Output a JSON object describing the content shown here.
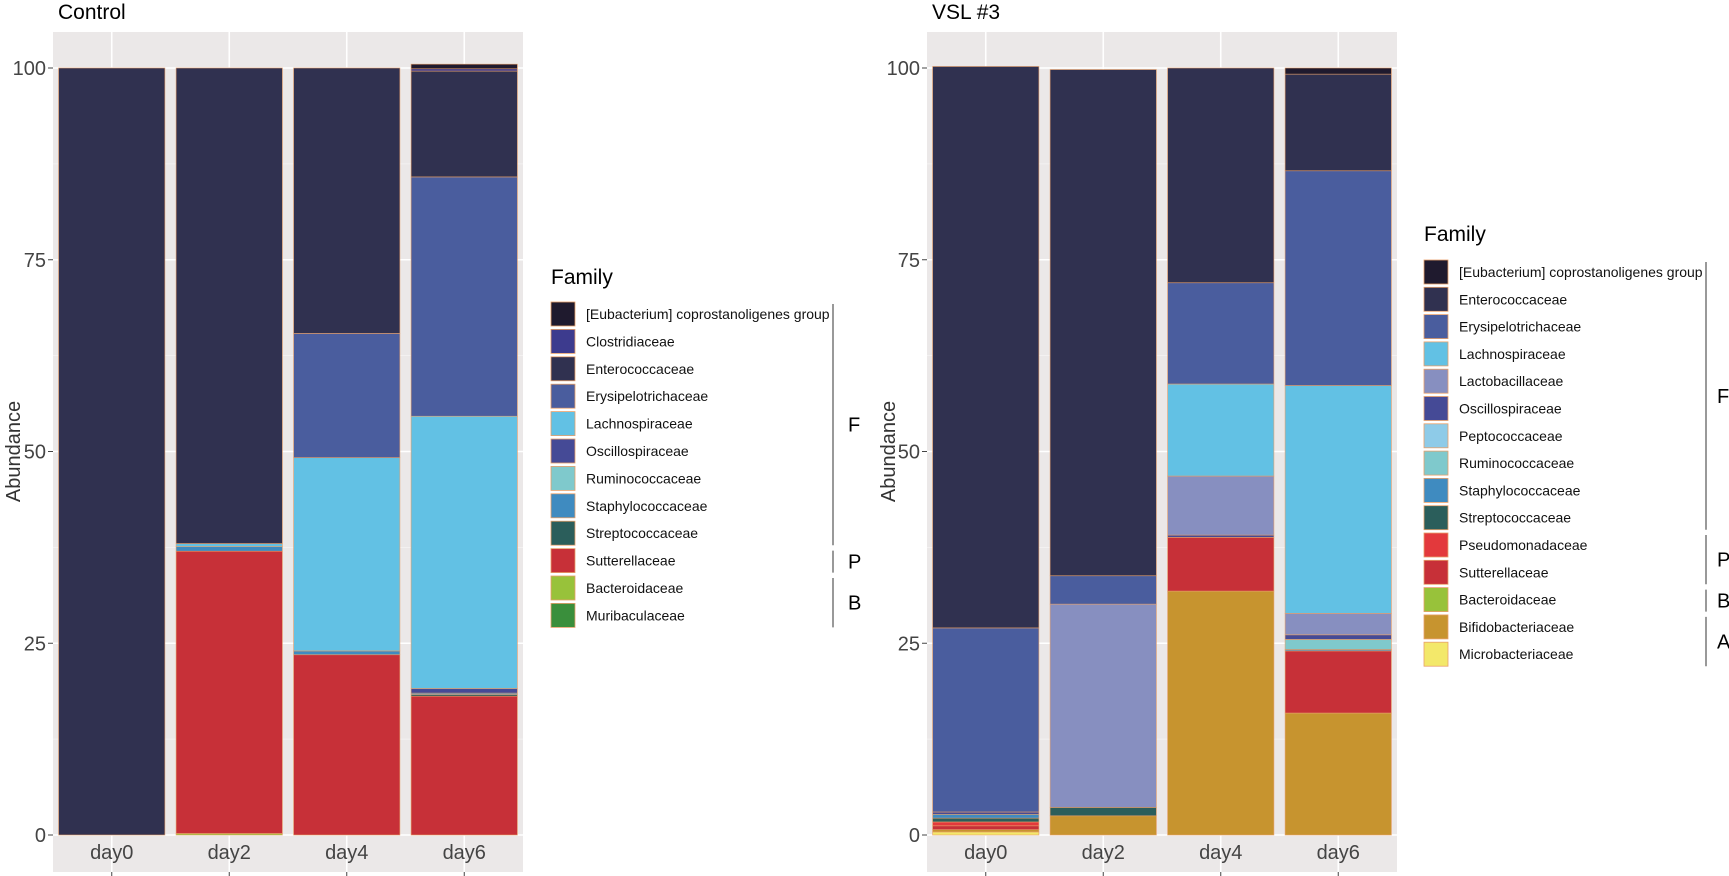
{
  "chart_data": [
    {
      "type": "bar",
      "stacked": true,
      "title": "Control",
      "xlabel": "",
      "ylabel": "Abundance",
      "ylim": [
        0,
        100
      ],
      "yticks": [
        0,
        25,
        50,
        75,
        100
      ],
      "categories": [
        "day0",
        "day2",
        "day4",
        "day6"
      ],
      "legend_title": "Family",
      "grid": true,
      "series": [
        {
          "name": "[Eubacterium] coprostanoligenes group",
          "color": "#1f1a2e",
          "values": [
            0,
            0,
            0,
            0.6
          ]
        },
        {
          "name": "Clostridiaceae",
          "color": "#3d3b8e",
          "values": [
            0,
            0,
            0,
            0.3
          ]
        },
        {
          "name": "Enterococcaceae",
          "color": "#303150",
          "values": [
            100,
            62,
            34.6,
            13.8
          ]
        },
        {
          "name": "Erysipelotrichaceae",
          "color": "#4a5d9e",
          "values": [
            0,
            0,
            16.2,
            31.2
          ]
        },
        {
          "name": "Lachnospiraceae",
          "color": "#62c1e4",
          "values": [
            0,
            0.4,
            25.2,
            35.5
          ]
        },
        {
          "name": "Oscillospiraceae",
          "color": "#454a96",
          "values": [
            0,
            0,
            0,
            0.6
          ]
        },
        {
          "name": "Ruminococcaceae",
          "color": "#7fc9cc",
          "values": [
            0,
            0,
            0,
            0
          ]
        },
        {
          "name": "Staphylococcaceae",
          "color": "#3f8bc0",
          "values": [
            0,
            0.6,
            0.5,
            0.2
          ]
        },
        {
          "name": "Streptococcaceae",
          "color": "#2b5e5b",
          "values": [
            0,
            0,
            0,
            0.2
          ]
        },
        {
          "name": "Sutterellaceae",
          "color": "#c73038",
          "values": [
            0,
            36.8,
            23.5,
            18.1
          ]
        },
        {
          "name": "Bacteroidaceae",
          "color": "#98c23a",
          "values": [
            0,
            0.2,
            0,
            0
          ]
        },
        {
          "name": "Muribaculaceae",
          "color": "#3a8f3c",
          "values": [
            0,
            0,
            0,
            0
          ]
        }
      ],
      "phylum_groups": [
        {
          "label": "F",
          "from": 0,
          "to": 8
        },
        {
          "label": "P",
          "from": 9,
          "to": 9
        },
        {
          "label": "B",
          "from": 10,
          "to": 11
        }
      ]
    },
    {
      "type": "bar",
      "stacked": true,
      "title": "VSL #3",
      "xlabel": "",
      "ylabel": "Abundance",
      "ylim": [
        0,
        100
      ],
      "yticks": [
        0,
        25,
        50,
        75,
        100
      ],
      "categories": [
        "day0",
        "day2",
        "day4",
        "day6"
      ],
      "legend_title": "Family",
      "grid": true,
      "series": [
        {
          "name": "[Eubacterium] coprostanoligenes group",
          "color": "#1f1a2e",
          "values": [
            0,
            0,
            0,
            0.8
          ]
        },
        {
          "name": "Enterococcaceae",
          "color": "#303150",
          "values": [
            73.2,
            66,
            28,
            12.6
          ]
        },
        {
          "name": "Erysipelotrichaceae",
          "color": "#4a5d9e",
          "values": [
            24,
            3.7,
            13.2,
            28
          ]
        },
        {
          "name": "Lachnospiraceae",
          "color": "#62c1e4",
          "values": [
            0,
            0,
            12,
            29.7
          ]
        },
        {
          "name": "Lactobacillaceae",
          "color": "#878fc0",
          "values": [
            0,
            26.5,
            7.7,
            2.8
          ]
        },
        {
          "name": "Oscillospiraceae",
          "color": "#454a96",
          "values": [
            0.3,
            0,
            0.3,
            0.6
          ]
        },
        {
          "name": "Peptococcaceae",
          "color": "#8ecbe8",
          "values": [
            0,
            0,
            0,
            0
          ]
        },
        {
          "name": "Ruminococcaceae",
          "color": "#7fc9cc",
          "values": [
            0,
            0,
            0,
            1.3
          ]
        },
        {
          "name": "Staphylococcaceae",
          "color": "#3f8bc0",
          "values": [
            0.5,
            0,
            0,
            0.2
          ]
        },
        {
          "name": "Streptococcaceae",
          "color": "#2b5e5b",
          "values": [
            0.5,
            1.1,
            0,
            0
          ]
        },
        {
          "name": "Pseudomonadaceae",
          "color": "#e3393c",
          "values": [
            0.5,
            0,
            0,
            0
          ]
        },
        {
          "name": "Sutterellaceae",
          "color": "#c73038",
          "values": [
            0.5,
            0,
            7,
            8.1
          ]
        },
        {
          "name": "Bacteroidaceae",
          "color": "#98c23a",
          "values": [
            0,
            0,
            0,
            0
          ]
        },
        {
          "name": "Bifidobacteriaceae",
          "color": "#c7942f",
          "values": [
            0.3,
            2.5,
            31.8,
            15.9
          ]
        },
        {
          "name": "Microbacteriaceae",
          "color": "#f3e86a",
          "values": [
            0.4,
            0,
            0,
            0
          ]
        }
      ],
      "phylum_groups": [
        {
          "label": "F",
          "from": 0,
          "to": 9
        },
        {
          "label": "P",
          "from": 10,
          "to": 11
        },
        {
          "label": "B",
          "from": 12,
          "to": 12
        },
        {
          "label": "A",
          "from": 13,
          "to": 14
        }
      ]
    }
  ]
}
